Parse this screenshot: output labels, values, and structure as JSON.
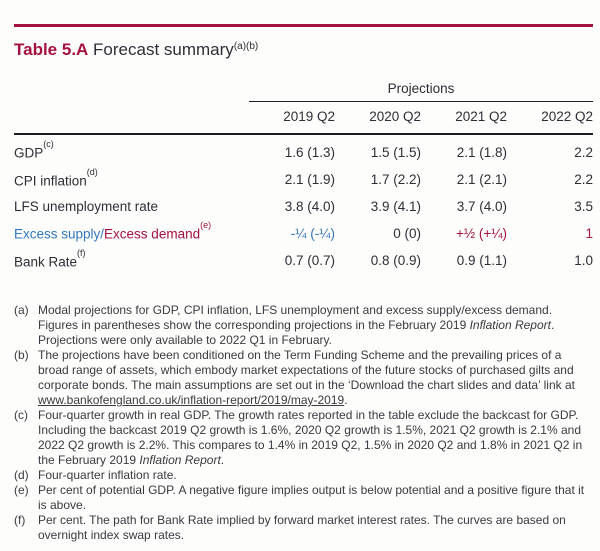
{
  "colors": {
    "accent": "#A51140",
    "blue": "#3377BE",
    "text": "#2E2E36",
    "fntext": "#3A3A40",
    "rule": "#1D1D24",
    "bg": "#FDFDFB"
  },
  "title": {
    "label": "Table 5.A",
    "text": " Forecast summary",
    "superscript": "(a)(b)"
  },
  "table": {
    "group_header": "Projections",
    "columns": [
      "2019 Q2",
      "2020 Q2",
      "2021 Q2",
      "2022 Q2"
    ],
    "rows": [
      {
        "label": "GDP",
        "sup": "(c)",
        "values": [
          "1.6 (1.3)",
          "1.5 (1.5)",
          "2.1 (1.8)",
          "2.2"
        ]
      },
      {
        "label": "CPI inflation",
        "sup": "(d)",
        "values": [
          "2.1 (1.9)",
          "1.7 (2.2)",
          "2.1 (2.1)",
          "2.2"
        ]
      },
      {
        "label": "LFS unemployment rate",
        "sup": "",
        "values": [
          "3.8 (4.0)",
          "3.9 (4.1)",
          "3.7 (4.0)",
          "3.5"
        ]
      },
      {
        "label_supply": "Excess supply/",
        "label_demand": "Excess demand",
        "sup": "(e)",
        "values": [
          "-¼ (-¼)",
          "0 (0)",
          "+½ (+¼)",
          "1"
        ]
      },
      {
        "label": "Bank Rate",
        "sup": "(f)",
        "values": [
          "0.7 (0.7)",
          "0.8 (0.9)",
          "0.9 (1.1)",
          "1.0"
        ]
      }
    ]
  },
  "footnotes": [
    {
      "marker": "(a)",
      "pre": "Modal projections for GDP, CPI inflation, LFS unemployment and excess supply/excess demand. Figures in parentheses show the corresponding projections in the February 2019 ",
      "italic": "Inflation Report",
      "post": ". Projections were only available to 2022 Q1 in February."
    },
    {
      "marker": "(b)",
      "pre": "The projections have been conditioned on the Term Funding Scheme and the prevailing prices of a broad range of assets, which embody market expectations of the future stocks of purchased gilts and corporate bonds. The main assumptions are set out in the ‘Download the chart slides and data’ link at ",
      "link": "www.bankofengland.co.uk/inflation-report/2019/may-2019",
      "post": "."
    },
    {
      "marker": "(c)",
      "pre": "Four-quarter growth in real GDP. The growth rates reported in the table exclude the backcast for GDP. Including the backcast 2019 Q2 growth is 1.6%, 2020 Q2 growth is 1.5%, 2021 Q2 growth is 2.1% and 2022 Q2 growth is 2.2%. This compares to 1.4% in 2019 Q2, 1.5% in 2020 Q2 and 1.8% in 2021 Q2 in the February 2019 ",
      "italic": "Inflation Report",
      "post": "."
    },
    {
      "marker": "(d)",
      "pre": "Four-quarter inflation rate."
    },
    {
      "marker": "(e)",
      "pre": "Per cent of potential GDP. A negative figure implies output is below potential and a positive figure that it is above."
    },
    {
      "marker": "(f)",
      "pre": "Per cent. The path for Bank Rate implied by forward market interest rates. The curves are based on overnight index swap rates."
    }
  ]
}
